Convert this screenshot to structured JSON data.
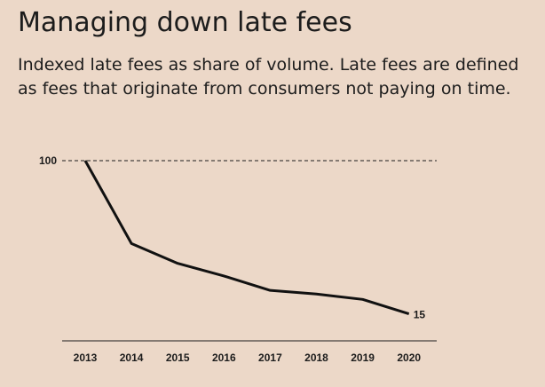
{
  "header": {
    "title": "Managing down late fees",
    "subtitle": "Indexed late fees as share of volume.  Late fees are defined as fees that originate from consumers not paying on time."
  },
  "chart_data": {
    "type": "line",
    "title": "Managing down late fees",
    "subtitle": "Indexed late fees as share of volume.  Late fees are defined as fees that originate from consumers not paying on time.",
    "categories": [
      "2013",
      "2014",
      "2015",
      "2016",
      "2017",
      "2018",
      "2019",
      "2020"
    ],
    "series": [
      {
        "values": [
          100,
          54,
          43,
          36,
          28,
          26,
          23,
          15
        ]
      }
    ],
    "reference_line": {
      "value": 100,
      "label": "100",
      "style": "dashed"
    },
    "end_label": "15",
    "ylim": [
      0,
      100
    ],
    "grid": false,
    "xlabel": "",
    "ylabel": "",
    "colors": {
      "line": "#111111",
      "background": "#ecd8c8",
      "axis": "#1c1c1c"
    }
  }
}
